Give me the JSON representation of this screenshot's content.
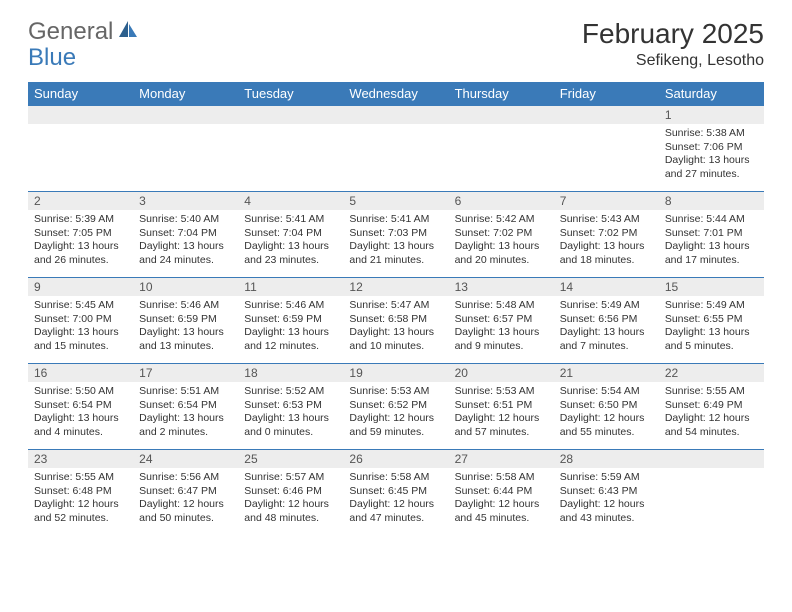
{
  "logo": {
    "general": "General",
    "blue": "Blue"
  },
  "title": "February 2025",
  "location": "Sefikeng, Lesotho",
  "header_bg": "#3a7ab8",
  "header_text": "#ffffff",
  "daynum_bg": "#ededed",
  "border_color": "#3a7ab8",
  "days_of_week": [
    "Sunday",
    "Monday",
    "Tuesday",
    "Wednesday",
    "Thursday",
    "Friday",
    "Saturday"
  ],
  "weeks": [
    [
      {
        "n": "",
        "sr": "",
        "ss": "",
        "dl": ""
      },
      {
        "n": "",
        "sr": "",
        "ss": "",
        "dl": ""
      },
      {
        "n": "",
        "sr": "",
        "ss": "",
        "dl": ""
      },
      {
        "n": "",
        "sr": "",
        "ss": "",
        "dl": ""
      },
      {
        "n": "",
        "sr": "",
        "ss": "",
        "dl": ""
      },
      {
        "n": "",
        "sr": "",
        "ss": "",
        "dl": ""
      },
      {
        "n": "1",
        "sr": "Sunrise: 5:38 AM",
        "ss": "Sunset: 7:06 PM",
        "dl": "Daylight: 13 hours and 27 minutes."
      }
    ],
    [
      {
        "n": "2",
        "sr": "Sunrise: 5:39 AM",
        "ss": "Sunset: 7:05 PM",
        "dl": "Daylight: 13 hours and 26 minutes."
      },
      {
        "n": "3",
        "sr": "Sunrise: 5:40 AM",
        "ss": "Sunset: 7:04 PM",
        "dl": "Daylight: 13 hours and 24 minutes."
      },
      {
        "n": "4",
        "sr": "Sunrise: 5:41 AM",
        "ss": "Sunset: 7:04 PM",
        "dl": "Daylight: 13 hours and 23 minutes."
      },
      {
        "n": "5",
        "sr": "Sunrise: 5:41 AM",
        "ss": "Sunset: 7:03 PM",
        "dl": "Daylight: 13 hours and 21 minutes."
      },
      {
        "n": "6",
        "sr": "Sunrise: 5:42 AM",
        "ss": "Sunset: 7:02 PM",
        "dl": "Daylight: 13 hours and 20 minutes."
      },
      {
        "n": "7",
        "sr": "Sunrise: 5:43 AM",
        "ss": "Sunset: 7:02 PM",
        "dl": "Daylight: 13 hours and 18 minutes."
      },
      {
        "n": "8",
        "sr": "Sunrise: 5:44 AM",
        "ss": "Sunset: 7:01 PM",
        "dl": "Daylight: 13 hours and 17 minutes."
      }
    ],
    [
      {
        "n": "9",
        "sr": "Sunrise: 5:45 AM",
        "ss": "Sunset: 7:00 PM",
        "dl": "Daylight: 13 hours and 15 minutes."
      },
      {
        "n": "10",
        "sr": "Sunrise: 5:46 AM",
        "ss": "Sunset: 6:59 PM",
        "dl": "Daylight: 13 hours and 13 minutes."
      },
      {
        "n": "11",
        "sr": "Sunrise: 5:46 AM",
        "ss": "Sunset: 6:59 PM",
        "dl": "Daylight: 13 hours and 12 minutes."
      },
      {
        "n": "12",
        "sr": "Sunrise: 5:47 AM",
        "ss": "Sunset: 6:58 PM",
        "dl": "Daylight: 13 hours and 10 minutes."
      },
      {
        "n": "13",
        "sr": "Sunrise: 5:48 AM",
        "ss": "Sunset: 6:57 PM",
        "dl": "Daylight: 13 hours and 9 minutes."
      },
      {
        "n": "14",
        "sr": "Sunrise: 5:49 AM",
        "ss": "Sunset: 6:56 PM",
        "dl": "Daylight: 13 hours and 7 minutes."
      },
      {
        "n": "15",
        "sr": "Sunrise: 5:49 AM",
        "ss": "Sunset: 6:55 PM",
        "dl": "Daylight: 13 hours and 5 minutes."
      }
    ],
    [
      {
        "n": "16",
        "sr": "Sunrise: 5:50 AM",
        "ss": "Sunset: 6:54 PM",
        "dl": "Daylight: 13 hours and 4 minutes."
      },
      {
        "n": "17",
        "sr": "Sunrise: 5:51 AM",
        "ss": "Sunset: 6:54 PM",
        "dl": "Daylight: 13 hours and 2 minutes."
      },
      {
        "n": "18",
        "sr": "Sunrise: 5:52 AM",
        "ss": "Sunset: 6:53 PM",
        "dl": "Daylight: 13 hours and 0 minutes."
      },
      {
        "n": "19",
        "sr": "Sunrise: 5:53 AM",
        "ss": "Sunset: 6:52 PM",
        "dl": "Daylight: 12 hours and 59 minutes."
      },
      {
        "n": "20",
        "sr": "Sunrise: 5:53 AM",
        "ss": "Sunset: 6:51 PM",
        "dl": "Daylight: 12 hours and 57 minutes."
      },
      {
        "n": "21",
        "sr": "Sunrise: 5:54 AM",
        "ss": "Sunset: 6:50 PM",
        "dl": "Daylight: 12 hours and 55 minutes."
      },
      {
        "n": "22",
        "sr": "Sunrise: 5:55 AM",
        "ss": "Sunset: 6:49 PM",
        "dl": "Daylight: 12 hours and 54 minutes."
      }
    ],
    [
      {
        "n": "23",
        "sr": "Sunrise: 5:55 AM",
        "ss": "Sunset: 6:48 PM",
        "dl": "Daylight: 12 hours and 52 minutes."
      },
      {
        "n": "24",
        "sr": "Sunrise: 5:56 AM",
        "ss": "Sunset: 6:47 PM",
        "dl": "Daylight: 12 hours and 50 minutes."
      },
      {
        "n": "25",
        "sr": "Sunrise: 5:57 AM",
        "ss": "Sunset: 6:46 PM",
        "dl": "Daylight: 12 hours and 48 minutes."
      },
      {
        "n": "26",
        "sr": "Sunrise: 5:58 AM",
        "ss": "Sunset: 6:45 PM",
        "dl": "Daylight: 12 hours and 47 minutes."
      },
      {
        "n": "27",
        "sr": "Sunrise: 5:58 AM",
        "ss": "Sunset: 6:44 PM",
        "dl": "Daylight: 12 hours and 45 minutes."
      },
      {
        "n": "28",
        "sr": "Sunrise: 5:59 AM",
        "ss": "Sunset: 6:43 PM",
        "dl": "Daylight: 12 hours and 43 minutes."
      },
      {
        "n": "",
        "sr": "",
        "ss": "",
        "dl": ""
      }
    ]
  ]
}
